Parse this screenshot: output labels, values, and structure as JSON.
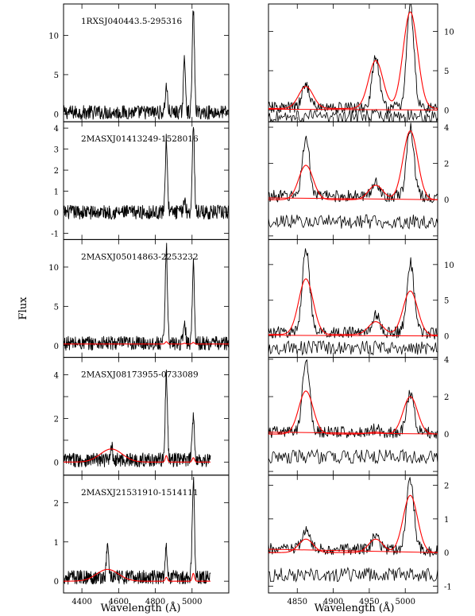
{
  "figure": {
    "ylabel": "Flux",
    "left_xlabel": "Wavelength (Å)",
    "right_xlabel": "Wavelength (Å)"
  },
  "chart_data": [
    {
      "type": "line",
      "panel": "left",
      "title": "1RXSJ040443.5-295316",
      "x": [
        4400,
        4860,
        4959,
        5007
      ],
      "xlim": [
        4300,
        5200
      ],
      "ylim": [
        -1,
        14
      ],
      "ytick_labels": [
        "0",
        "5",
        "10"
      ],
      "xtick_labels": [],
      "series": [
        {
          "values": [
            0.2,
            3.5,
            6.8,
            13.2
          ],
          "color": "#000000"
        }
      ]
    },
    {
      "type": "line",
      "panel": "left",
      "title": "2MASXJ01413249-1528016",
      "x": [
        4400,
        4860,
        4959,
        5007
      ],
      "xlim": [
        4300,
        5200
      ],
      "ylim": [
        -1.3,
        4.3
      ],
      "ytick_labels": [
        "-1",
        "0",
        "1",
        "2",
        "3",
        "4"
      ],
      "xtick_labels": [],
      "series": [
        {
          "values": [
            0.0,
            3.4,
            0.6,
            4.0
          ],
          "color": "#000000"
        }
      ]
    },
    {
      "type": "line",
      "panel": "left",
      "title": "2MASXJ05014863-2253232",
      "x": [
        4400,
        4860,
        4959,
        5007
      ],
      "xlim": [
        4300,
        5200
      ],
      "ylim": [
        -1.5,
        13.5
      ],
      "ytick_labels": [
        "0",
        "5",
        "10"
      ],
      "xtick_labels": [],
      "series": [
        {
          "values": [
            0.3,
            12.5,
            3.0,
            10.3
          ],
          "color": "#000000"
        },
        {
          "values": [
            0.2,
            0.5,
            0.3,
            0.4
          ],
          "color": "#ff0000"
        }
      ]
    },
    {
      "type": "line",
      "panel": "left",
      "title": "2MASXJ08173955-0733089",
      "x": [
        4400,
        4560,
        4860,
        5007
      ],
      "xlim": [
        4300,
        5200
      ],
      "ylim": [
        -0.6,
        4.8
      ],
      "ytick_labels": [
        "0",
        "2",
        "4"
      ],
      "xtick_labels": [],
      "series": [
        {
          "values": [
            0.1,
            0.8,
            4.0,
            2.2
          ],
          "color": "#000000"
        },
        {
          "values": [
            0.0,
            0.6,
            0.3,
            0.2
          ],
          "color": "#ff0000"
        }
      ]
    },
    {
      "type": "line",
      "panel": "left",
      "title": "2MASXJ21531910-1514111",
      "x": [
        4400,
        4540,
        4860,
        5007
      ],
      "xlim": [
        4300,
        5200
      ],
      "ylim": [
        -0.3,
        2.7
      ],
      "ytick_labels": [
        "0",
        "1",
        "2"
      ],
      "xtick_labels": [
        "4400",
        "4600",
        "4800",
        "5000"
      ],
      "series": [
        {
          "values": [
            0.1,
            0.9,
            0.8,
            2.6
          ],
          "color": "#000000"
        },
        {
          "values": [
            0.0,
            0.3,
            0.1,
            0.2
          ],
          "color": "#ff0000"
        }
      ]
    },
    {
      "type": "line",
      "panel": "right",
      "title": "",
      "x": [
        4820,
        4862,
        4959,
        5007,
        5040
      ],
      "xlim": [
        4810,
        5045
      ],
      "ylim": [
        -1.5,
        13.5
      ],
      "ytick_labels": [
        "0",
        "5",
        "10"
      ],
      "xtick_labels": [],
      "series": [
        {
          "values": [
            0.3,
            3.3,
            6.6,
            13.2,
            0.2
          ],
          "color": "#000000"
        },
        {
          "values": [
            0.2,
            3.0,
            6.3,
            12.5,
            0.2
          ],
          "color": "#ff0000"
        }
      ]
    },
    {
      "type": "line",
      "panel": "right",
      "title": "",
      "x": [
        4820,
        4862,
        4959,
        5007,
        5040
      ],
      "xlim": [
        4810,
        5045
      ],
      "ylim": [
        -2.2,
        4.3
      ],
      "ytick_labels": [
        "0",
        "2",
        "4"
      ],
      "xtick_labels": [],
      "series": [
        {
          "values": [
            0.2,
            3.4,
            1.0,
            4.0,
            0.0
          ],
          "color": "#000000"
        },
        {
          "values": [
            0.0,
            1.9,
            0.8,
            3.8,
            0.0
          ],
          "color": "#ff0000"
        }
      ]
    },
    {
      "type": "line",
      "panel": "right",
      "title": "",
      "x": [
        4820,
        4862,
        4959,
        5007,
        5040
      ],
      "xlim": [
        4810,
        5045
      ],
      "ylim": [
        -3.0,
        13.5
      ],
      "ytick_labels": [
        "0",
        "5",
        "10"
      ],
      "xtick_labels": [],
      "series": [
        {
          "values": [
            0.5,
            12.5,
            3.0,
            10.3,
            0.3
          ],
          "color": "#000000"
        },
        {
          "values": [
            0.2,
            8.0,
            2.0,
            6.3,
            0.1
          ],
          "color": "#ff0000"
        }
      ]
    },
    {
      "type": "line",
      "panel": "right",
      "title": "",
      "x": [
        4820,
        4862,
        4959,
        5007,
        5040
      ],
      "xlim": [
        4810,
        5045
      ],
      "ylim": [
        -2.2,
        4.1
      ],
      "ytick_labels": [
        "0",
        "2",
        "4"
      ],
      "xtick_labels": [],
      "series": [
        {
          "values": [
            0.1,
            4.0,
            0.3,
            2.2,
            0.0
          ],
          "color": "#000000"
        },
        {
          "values": [
            0.0,
            2.3,
            0.1,
            2.0,
            0.0
          ],
          "color": "#ff0000"
        }
      ]
    },
    {
      "type": "line",
      "panel": "right",
      "title": "",
      "x": [
        4820,
        4862,
        4959,
        5007,
        5040
      ],
      "xlim": [
        4810,
        5045
      ],
      "ylim": [
        -1.2,
        2.3
      ],
      "ytick_labels": [
        "-1",
        "0",
        "1",
        "2"
      ],
      "xtick_labels": [
        "4850",
        "4900",
        "4950",
        "5000"
      ],
      "series": [
        {
          "values": [
            0.1,
            0.7,
            0.5,
            2.2,
            0.0
          ],
          "color": "#000000"
        },
        {
          "values": [
            0.0,
            0.4,
            0.4,
            1.7,
            0.0
          ],
          "color": "#ff0000"
        }
      ]
    }
  ]
}
